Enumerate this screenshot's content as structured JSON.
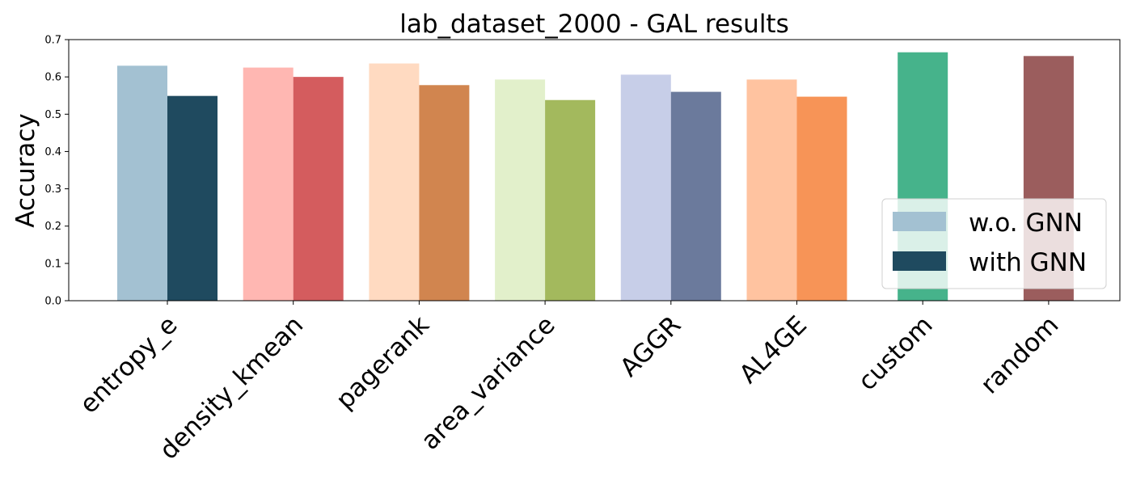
{
  "chart_data": {
    "type": "bar",
    "title": "lab_dataset_2000 - GAL results",
    "xlabel": "",
    "ylabel": "Accuracy",
    "ylim": [
      0,
      0.7
    ],
    "yticks": [
      "0.0",
      "0.1",
      "0.2",
      "0.3",
      "0.4",
      "0.5",
      "0.6",
      "0.7"
    ],
    "grid": false,
    "legend_position": "bottom-right",
    "legend": [
      "w.o. GNN",
      "with GNN"
    ],
    "categories": [
      "entropy_e",
      "density_kmean",
      "pagerank",
      "area_variance",
      "AGGR",
      "AL4GE",
      "custom",
      "random"
    ],
    "series": [
      {
        "name": "w.o. GNN",
        "values": [
          0.63,
          0.625,
          0.636,
          0.593,
          0.606,
          0.593,
          null,
          null
        ],
        "colors": [
          "#a3c1d2",
          "#ffb7b2",
          "#ffdac1",
          "#e2f0cb",
          "#c7cee8",
          "#ffc3a0",
          null,
          null
        ]
      },
      {
        "name": "with GNN",
        "values": [
          0.549,
          0.6,
          0.578,
          0.538,
          0.56,
          0.547,
          null,
          null
        ],
        "colors": [
          "#1f4a5f",
          "#d45c5e",
          "#d1854f",
          "#a3b95d",
          "#6b7a9c",
          "#f79457",
          null,
          null
        ]
      },
      {
        "name": "",
        "values": [
          null,
          null,
          null,
          null,
          null,
          null,
          0.666,
          0.656
        ],
        "colors": [
          null,
          null,
          null,
          null,
          null,
          null,
          "#46b38b",
          "#9b5d5d"
        ]
      }
    ],
    "legend_colors": [
      "#a3c1d2",
      "#1f4a5f"
    ]
  }
}
